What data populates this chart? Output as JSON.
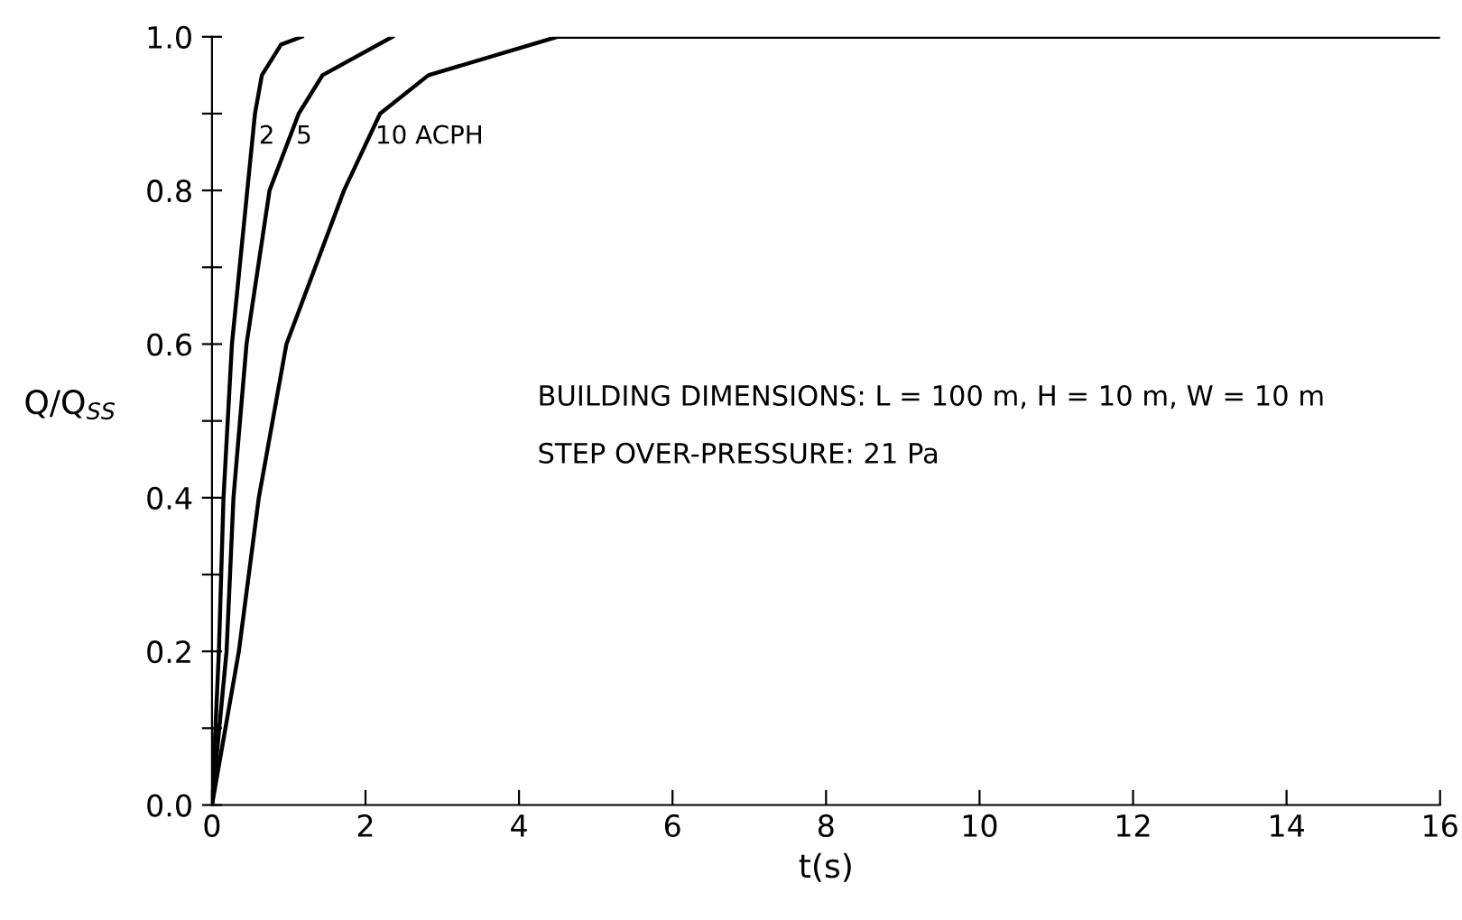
{
  "chart_data": {
    "type": "line",
    "xlabel": "t(s)",
    "ylabel": "Q/Q$_{SS}$",
    "series": [
      {
        "name": "2",
        "color": "#000000",
        "x": [
          0,
          0.09,
          0.15,
          0.26,
          0.46,
          0.56,
          0.65,
          0.9,
          1.17
        ],
        "values": [
          0,
          0.2,
          0.4,
          0.6,
          0.8,
          0.9,
          0.95,
          0.99,
          1.0
        ]
      },
      {
        "name": "5",
        "color": "#000000",
        "x": [
          0,
          0.19,
          0.28,
          0.45,
          0.75,
          1.13,
          1.44,
          2.35
        ],
        "values": [
          0,
          0.2,
          0.4,
          0.6,
          0.8,
          0.9,
          0.95,
          1.0
        ]
      },
      {
        "name": "10 ACPH",
        "color": "#000000",
        "x": [
          0,
          0.35,
          0.61,
          0.97,
          1.72,
          2.19,
          2.82,
          4.5,
          16
        ],
        "values": [
          0,
          0.2,
          0.4,
          0.6,
          0.8,
          0.9,
          0.95,
          1.0,
          1.0
        ]
      }
    ],
    "xlim": [
      0,
      16
    ],
    "xticks": [
      0,
      2,
      4,
      6,
      8,
      10,
      12,
      14,
      16
    ],
    "ylim": [
      0,
      1.0
    ],
    "yticks": [
      {
        "value": 0,
        "label": "0.0"
      },
      {
        "value": 0.1,
        "label": null
      },
      {
        "value": 0.2,
        "label": "0.2"
      },
      {
        "value": 0.3,
        "label": null
      },
      {
        "value": 0.4,
        "label": "0.4"
      },
      {
        "value": 0.5,
        "label": null
      },
      {
        "value": 0.6,
        "label": "0.6"
      },
      {
        "value": 0.7,
        "label": null
      },
      {
        "value": 0.8,
        "label": "0.8"
      },
      {
        "value": 0.9,
        "label": null
      },
      {
        "value": 1.0,
        "label": "1.0"
      }
    ],
    "grid": false,
    "legend": false,
    "marker": "none",
    "line_style": "solid",
    "annotations": [
      "BUILDING DIMENSIONS: L = 100 m, H = 10 m, W = 10 m",
      "STEP OVER-PRESSURE: 21 Pa"
    ]
  }
}
